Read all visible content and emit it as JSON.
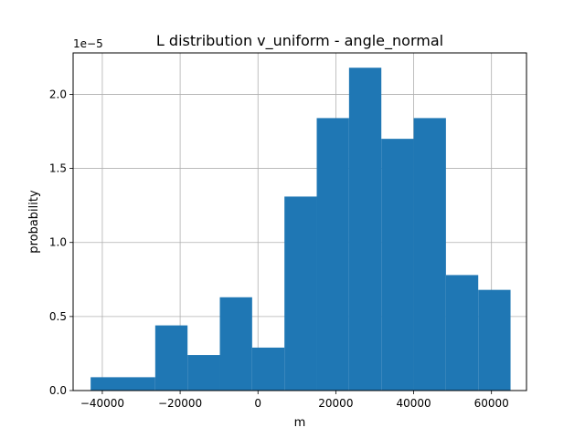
{
  "chart_data": {
    "type": "bar",
    "title": "L distribution v_uniform - angle_normal",
    "xlabel": "m",
    "ylabel": "probability",
    "y_scale_label": "1e−5",
    "xlim": [
      -47500,
      69000
    ],
    "ylim": [
      0,
      2.28
    ],
    "grid": true,
    "bar_color": "#1f77b4",
    "bins": [
      {
        "x0": -43000,
        "x1": -26400,
        "value": 0.09
      },
      {
        "x0": -26400,
        "x1": -18100,
        "value": 0.44
      },
      {
        "x0": -18100,
        "x1": -9800,
        "value": 0.24
      },
      {
        "x0": -9800,
        "x1": -1500,
        "value": 0.63
      },
      {
        "x0": -1500,
        "x1": 6800,
        "value": 0.29
      },
      {
        "x0": 6800,
        "x1": 15100,
        "value": 1.31
      },
      {
        "x0": 15100,
        "x1": 23400,
        "value": 1.84
      },
      {
        "x0": 23400,
        "x1": 31700,
        "value": 2.18
      },
      {
        "x0": 31700,
        "x1": 40000,
        "value": 1.7
      },
      {
        "x0": 40000,
        "x1": 48300,
        "value": 1.84
      },
      {
        "x0": 48300,
        "x1": 56600,
        "value": 0.78
      },
      {
        "x0": 56600,
        "x1": 64900,
        "value": 0.68
      }
    ],
    "x_ticks": [
      {
        "value": -40000,
        "label": "−40000"
      },
      {
        "value": -20000,
        "label": "−20000"
      },
      {
        "value": 0,
        "label": "0"
      },
      {
        "value": 20000,
        "label": "20000"
      },
      {
        "value": 40000,
        "label": "40000"
      },
      {
        "value": 60000,
        "label": "60000"
      }
    ],
    "y_ticks": [
      {
        "value": 0.0,
        "label": "0.0"
      },
      {
        "value": 0.5,
        "label": "0.5"
      },
      {
        "value": 1.0,
        "label": "1.0"
      },
      {
        "value": 1.5,
        "label": "1.5"
      },
      {
        "value": 2.0,
        "label": "2.0"
      }
    ]
  }
}
